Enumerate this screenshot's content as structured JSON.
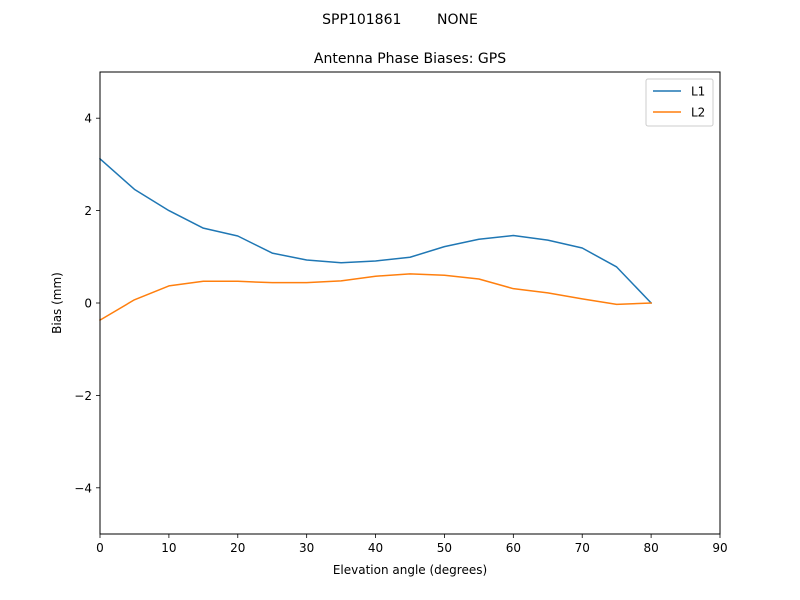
{
  "chart_data": {
    "type": "line",
    "suptitle": "SPP101861        NONE",
    "title": "Antenna Phase Biases: GPS",
    "xlabel": "Elevation angle (degrees)",
    "ylabel": "Bias (mm)",
    "xlim": [
      0,
      90
    ],
    "ylim": [
      -5,
      5
    ],
    "xticks": [
      0,
      10,
      20,
      30,
      40,
      50,
      60,
      70,
      80,
      90
    ],
    "yticks": [
      -4,
      -2,
      0,
      2,
      4
    ],
    "xtick_labels": [
      "0",
      "10",
      "20",
      "30",
      "40",
      "50",
      "60",
      "70",
      "80",
      "90"
    ],
    "ytick_labels": [
      "−4",
      "−2",
      "0",
      "2",
      "4"
    ],
    "grid": false,
    "legend_position": "top-right",
    "x": [
      0,
      5,
      10,
      15,
      20,
      25,
      30,
      35,
      40,
      45,
      50,
      55,
      60,
      65,
      70,
      75,
      80
    ],
    "series": [
      {
        "name": "L1",
        "color": "#1f77b4",
        "values": [
          3.12,
          2.46,
          2.0,
          1.62,
          1.45,
          1.08,
          0.93,
          0.87,
          0.91,
          0.99,
          1.22,
          1.38,
          1.46,
          1.36,
          1.19,
          0.78,
          0.0
        ]
      },
      {
        "name": "L2",
        "color": "#ff7f0e",
        "values": [
          -0.37,
          0.07,
          0.37,
          0.47,
          0.47,
          0.44,
          0.44,
          0.48,
          0.58,
          0.63,
          0.6,
          0.52,
          0.31,
          0.22,
          0.09,
          -0.03,
          0.0
        ]
      }
    ]
  }
}
